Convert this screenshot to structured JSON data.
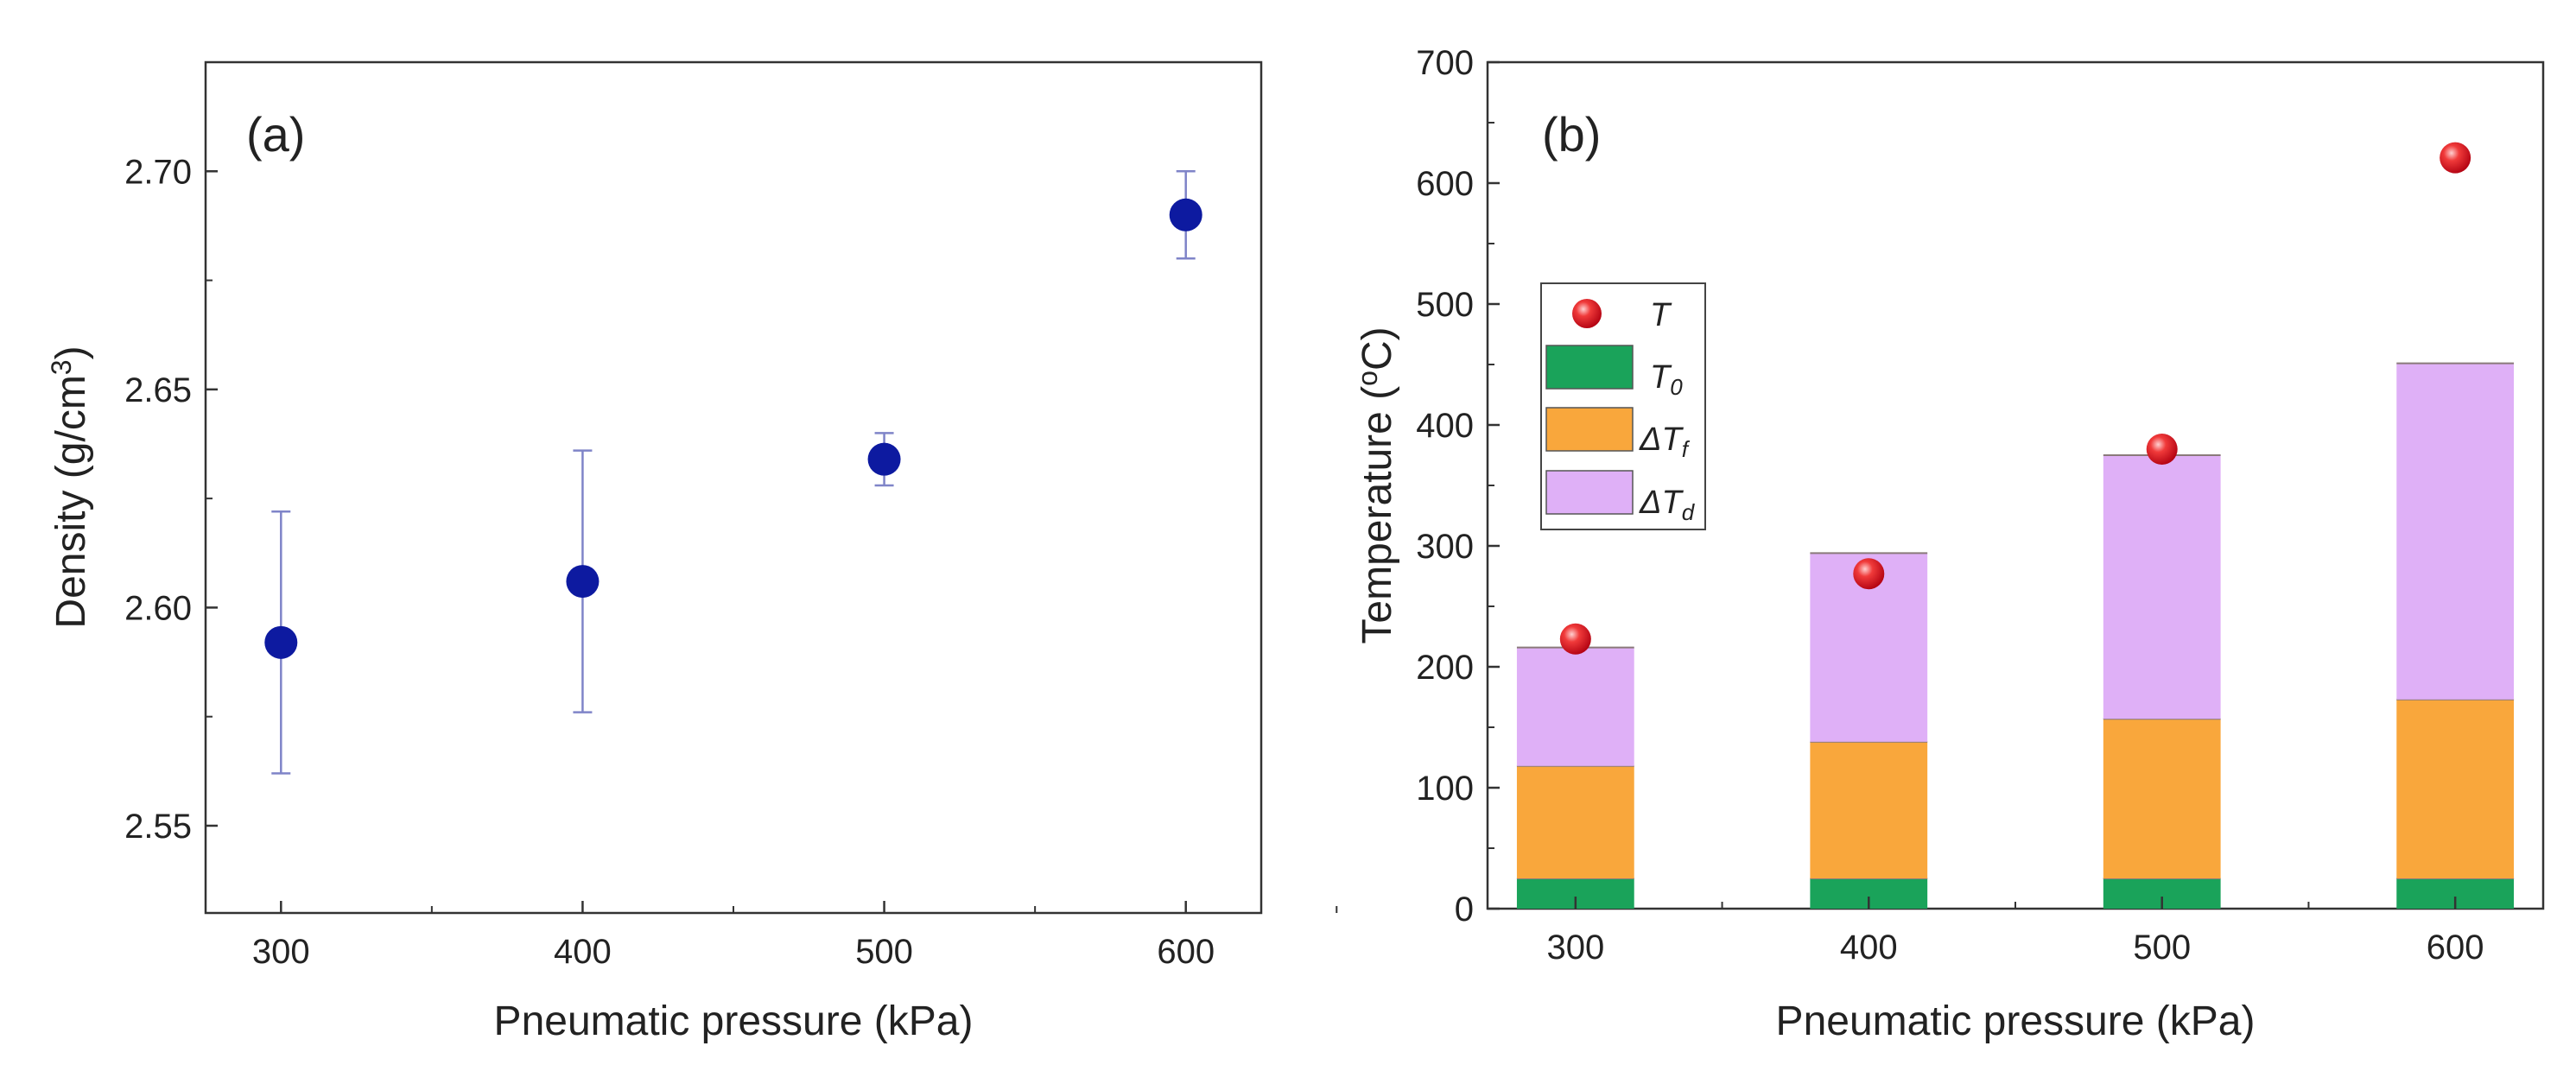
{
  "chart_data": [
    {
      "type": "scatter",
      "panel_label": "(a)",
      "xlabel": "Pneumatic pressure (kPa)",
      "ylabel": "Density (g/cm",
      "ylabel_sup": "3",
      "ylabel_close": ")",
      "xlim": [
        275,
        625
      ],
      "ylim": [
        2.53,
        2.725
      ],
      "xticks": [
        300,
        400,
        500,
        600
      ],
      "xtick_labels": [
        "300",
        "400",
        "500",
        "600"
      ],
      "yticks": [
        2.55,
        2.6,
        2.65,
        2.7
      ],
      "ytick_labels": [
        "2.55",
        "2.60",
        "2.65",
        "2.70"
      ],
      "grid": false,
      "series": [
        {
          "name": "Density",
          "x": [
            300,
            400,
            500,
            600
          ],
          "y": [
            2.592,
            2.606,
            2.634,
            2.69
          ],
          "error": [
            0.03,
            0.03,
            0.006,
            0.01
          ],
          "color": "#0d1aa0"
        }
      ]
    },
    {
      "type": "bar",
      "stacked": true,
      "panel_label": "(b)",
      "xlabel": "Pneumatic pressure (kPa)",
      "ylabel": "Temperature (",
      "ylabel_sup": "o",
      "ylabel_close": "C)",
      "xlim": [
        270,
        630
      ],
      "ylim": [
        0,
        700
      ],
      "xticks": [
        300,
        400,
        500,
        600
      ],
      "xtick_labels": [
        "300",
        "400",
        "500",
        "600"
      ],
      "yticks": [
        0,
        100,
        200,
        300,
        400,
        500,
        600,
        700
      ],
      "ytick_labels": [
        "0",
        "100",
        "200",
        "300",
        "400",
        "500",
        "600",
        "700"
      ],
      "grid": false,
      "categories": [
        300,
        400,
        500,
        600
      ],
      "series": [
        {
          "name": "T0",
          "values": [
            25,
            25,
            25,
            25
          ],
          "color": "#1aa35a"
        },
        {
          "name": "ΔTf",
          "values": [
            93,
            113,
            132,
            148
          ],
          "color": "#f9a73c"
        },
        {
          "name": "ΔTd",
          "values": [
            98,
            156,
            218,
            278
          ],
          "color": "#dfb0f7"
        }
      ],
      "points": {
        "name": "T",
        "values": [
          223,
          277,
          380,
          621
        ],
        "color": "#e8101a"
      },
      "legend": {
        "placement": "center-left",
        "entries": [
          {
            "key": "T",
            "main": "T",
            "sub": ""
          },
          {
            "key": "T0",
            "main": "T",
            "sub": "0"
          },
          {
            "key": "Tf",
            "main": "ΔT",
            "sub": "f"
          },
          {
            "key": "Td",
            "main": "ΔT",
            "sub": "d"
          }
        ]
      }
    }
  ]
}
